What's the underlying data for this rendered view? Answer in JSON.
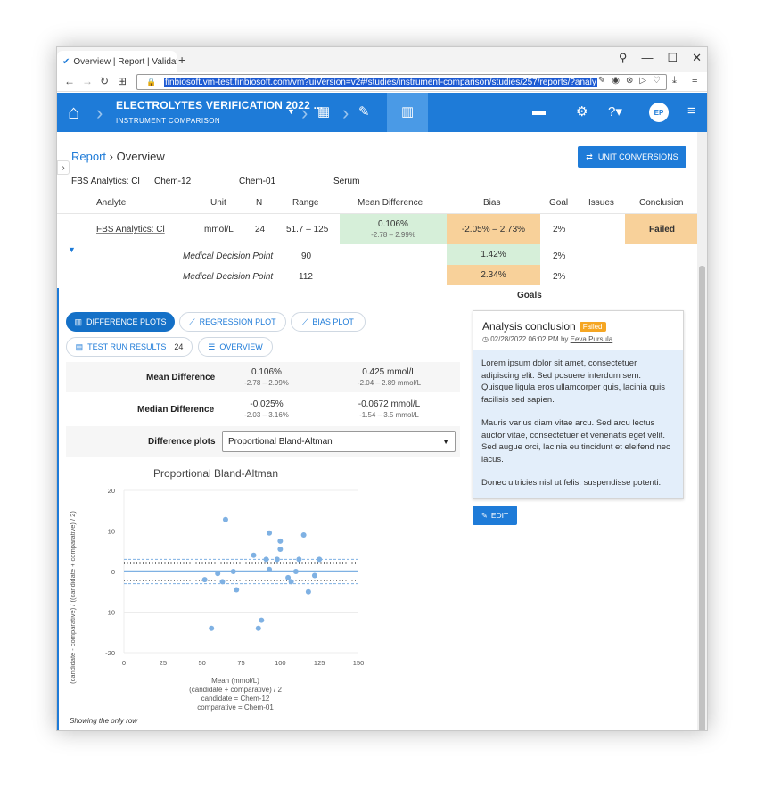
{
  "browser": {
    "tab_title": "Overview | Report | Validat",
    "tab_icon": "finbiosoft-logo-icon",
    "url": "finbiosoft.vm-test.finbiosoft.com/vm?uiVersion=v2#/studies/instrument-comparison/studies/257/reports/?analy"
  },
  "appbar": {
    "title": "ELECTROLYTES VERIFICATION 2022 ...",
    "subtitle": "INSTRUMENT COMPARISON",
    "avatar": "EP",
    "color": "#1e7bd8"
  },
  "page": {
    "breadcrumb_link": "Report",
    "breadcrumb_current": "Overview",
    "unit_conversions": "UNIT CONVERSIONS"
  },
  "meta": {
    "analyte": "FBS Analytics: Cl",
    "candidate": "Chem-12",
    "comparative": "Chem-01",
    "sample": "Serum"
  },
  "table": {
    "headers": [
      "Analyte",
      "Unit",
      "N",
      "Range",
      "Mean Difference",
      "Bias",
      "Goal",
      "Issues",
      "Conclusion"
    ],
    "row": {
      "analyte": "FBS Analytics: Cl",
      "unit": "mmol/L",
      "n": "24",
      "range": "51.7 – 125",
      "mean_diff": "0.106%",
      "mean_diff_ci": "-2.78 – 2.99%",
      "bias": "-2.05% – 2.73%",
      "goal": "2%",
      "issues": "",
      "conclusion": "Failed"
    },
    "mdp": [
      {
        "label": "Medical Decision Point",
        "value": "90",
        "bias": "1.42%",
        "goal": "2%"
      },
      {
        "label": "Medical Decision Point",
        "value": "112",
        "bias": "2.34%",
        "goal": "2%"
      }
    ],
    "goals_label": "Goals"
  },
  "tabs": {
    "difference": "DIFFERENCE PLOTS",
    "regression": "REGRESSION PLOT",
    "bias": "BIAS PLOT",
    "test_runs": "TEST RUN RESULTS",
    "test_runs_count": "24",
    "overview": "OVERVIEW"
  },
  "stats": {
    "mean": {
      "label": "Mean Difference",
      "pct": "0.106%",
      "pct_ci": "-2.78 – 2.99%",
      "abs": "0.425 mmol/L",
      "abs_ci": "-2.04 – 2.89 mmol/L"
    },
    "median": {
      "label": "Median Difference",
      "pct": "-0.025%",
      "pct_ci": "-2.03 – 3.16%",
      "abs": "-0.0672 mmol/L",
      "abs_ci": "-1.54 – 3.5 mmol/L"
    },
    "difference_plots_label": "Difference plots",
    "difference_plots_value": "Proportional Bland-Altman"
  },
  "chart_data": {
    "type": "scatter",
    "title": "Proportional Bland-Altman",
    "ylabel": "(candidate - comparative) / ((candidate + comparative) / 2)",
    "xlabel": [
      "Mean (mmol/L)",
      "(candidate + comparative) / 2",
      "candidate = Chem-12",
      "comparative = Chem-01"
    ],
    "xlim": [
      0,
      150
    ],
    "ylim": [
      -20,
      20
    ],
    "xticks": [
      0,
      25,
      50,
      75,
      100,
      125,
      150
    ],
    "yticks": [
      20,
      10,
      0,
      -10,
      -20
    ],
    "mean_line": 0.1,
    "limits": [
      3,
      -3
    ],
    "ci_lines": [
      2.2,
      -2.2
    ],
    "points": [
      [
        51.7,
        -2
      ],
      [
        56,
        -14
      ],
      [
        60,
        -0.5
      ],
      [
        63,
        -2.5
      ],
      [
        65,
        12.8
      ],
      [
        70,
        0
      ],
      [
        72,
        -4.5
      ],
      [
        83,
        4
      ],
      [
        86,
        -14
      ],
      [
        88,
        -12
      ],
      [
        91,
        3
      ],
      [
        93,
        0.5
      ],
      [
        93,
        9.5
      ],
      [
        98,
        3
      ],
      [
        100,
        7.5
      ],
      [
        100,
        5.5
      ],
      [
        105,
        -1.5
      ],
      [
        107,
        -2.5
      ],
      [
        110,
        0
      ],
      [
        112,
        3
      ],
      [
        115,
        9
      ],
      [
        118,
        -5
      ],
      [
        122,
        -1
      ],
      [
        125,
        3
      ]
    ],
    "point_color": "#7fb1e3"
  },
  "footer": {
    "showing": "Showing the only row"
  },
  "conclusion": {
    "title": "Analysis conclusion",
    "status": "Failed",
    "date": "02/28/2022 06:02 PM by",
    "author": "Eeva Pursula",
    "paragraphs": [
      "Lorem ipsum dolor sit amet, consectetuer adipiscing elit. Sed posuere interdum sem. Quisque ligula eros ullamcorper quis, lacinia quis facilisis sed sapien.",
      "Mauris varius diam vitae arcu. Sed arcu lectus auctor vitae, consectetuer et venenatis eget velit. Sed augue orci, lacinia eu tincidunt et eleifend nec lacus.",
      "Donec ultricies nisl ut felis, suspendisse potenti."
    ],
    "edit": "EDIT"
  }
}
